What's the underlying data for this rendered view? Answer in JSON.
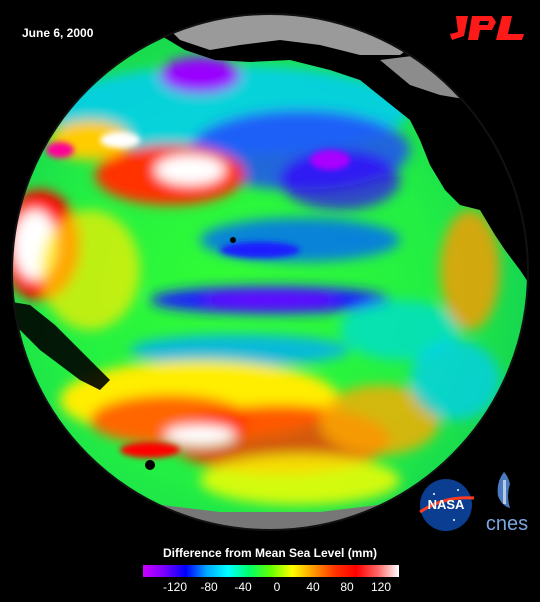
{
  "date": "June 6, 2000",
  "logos": {
    "jpl": "JPL",
    "nasa": "NASA",
    "cnes": "cnes"
  },
  "scale": {
    "title": "Difference from Mean Sea Level (mm)",
    "ticks": [
      "-120",
      "-80",
      "-40",
      "0",
      "40",
      "80",
      "120"
    ],
    "min": -120,
    "max": 120
  },
  "colors": {
    "land": "#000000",
    "ice": "#9a9a9a",
    "low": "#cc00ff",
    "high": "#ffffff"
  }
}
